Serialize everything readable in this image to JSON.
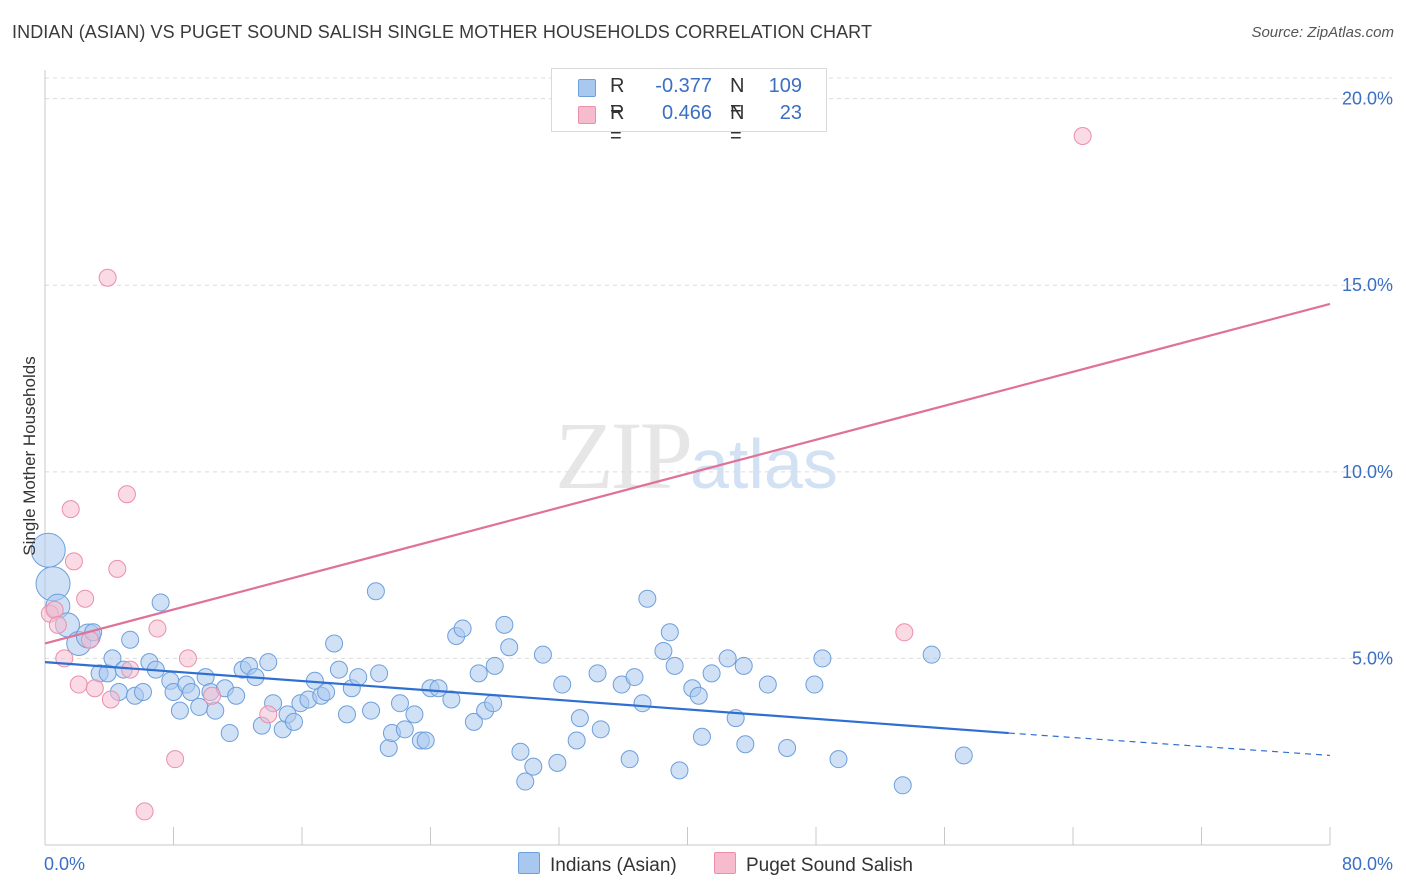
{
  "title": "INDIAN (ASIAN) VS PUGET SOUND SALISH SINGLE MOTHER HOUSEHOLDS CORRELATION CHART",
  "source": "Source: ZipAtlas.com",
  "watermark": {
    "zip": "ZIP",
    "atlas": "atlas"
  },
  "legend": {
    "rows": [
      {
        "r_label": "R =",
        "r_value": "-0.377",
        "n_label": "N =",
        "n_value": "109",
        "color": "#a9c8ef"
      },
      {
        "r_label": "R =",
        "r_value": "0.466",
        "n_label": "N =",
        "n_value": "23",
        "color": "#f6bccd"
      }
    ]
  },
  "bottom_legend": {
    "items": [
      {
        "label": "Indians (Asian)",
        "color": "#a9c8ef"
      },
      {
        "label": "Puget Sound Salish",
        "color": "#f6bccd"
      }
    ]
  },
  "chart_data": {
    "type": "scatter",
    "title": "INDIAN (ASIAN) VS PUGET SOUND SALISH SINGLE MOTHER HOUSEHOLDS CORRELATION CHART",
    "xlabel": "",
    "ylabel": "Single Mother Households",
    "xlim": [
      0,
      80
    ],
    "ylim": [
      0,
      20.5
    ],
    "x_tick_labels": [
      "0.0%",
      "80.0%"
    ],
    "y_ticks": [
      5,
      10,
      15,
      20
    ],
    "y_tick_labels": [
      "5.0%",
      "10.0%",
      "15.0%",
      "20.0%"
    ],
    "grid": true,
    "legend_position": "top-center",
    "series": [
      {
        "name": "Indians (Asian)",
        "color": "#a9c8ef",
        "edge_color": "#6d9fdc",
        "trend_color": "#2f6fd0",
        "trend": {
          "x0": 0,
          "y0": 4.9,
          "x1": 60,
          "y1": 3.0,
          "dashed_to_x": 80,
          "dashed_to_y": 2.4
        },
        "points": [
          {
            "x": 0.2,
            "y": 7.9,
            "s": 3
          },
          {
            "x": 0.5,
            "y": 7.0,
            "s": 3
          },
          {
            "x": 0.8,
            "y": 6.4,
            "s": 2
          },
          {
            "x": 1.4,
            "y": 5.9,
            "s": 2
          },
          {
            "x": 2.1,
            "y": 5.4,
            "s": 2
          },
          {
            "x": 2.7,
            "y": 5.6,
            "s": 2
          },
          {
            "x": 3.0,
            "y": 5.7,
            "s": 1
          },
          {
            "x": 3.4,
            "y": 4.6,
            "s": 1
          },
          {
            "x": 3.9,
            "y": 4.6,
            "s": 1
          },
          {
            "x": 4.2,
            "y": 5.0,
            "s": 1
          },
          {
            "x": 4.6,
            "y": 4.1,
            "s": 1
          },
          {
            "x": 4.9,
            "y": 4.7,
            "s": 1
          },
          {
            "x": 5.3,
            "y": 5.5,
            "s": 1
          },
          {
            "x": 5.6,
            "y": 4.0,
            "s": 1
          },
          {
            "x": 6.1,
            "y": 4.1,
            "s": 1
          },
          {
            "x": 6.5,
            "y": 4.9,
            "s": 1
          },
          {
            "x": 6.9,
            "y": 4.7,
            "s": 1
          },
          {
            "x": 7.2,
            "y": 6.5,
            "s": 1
          },
          {
            "x": 7.8,
            "y": 4.4,
            "s": 1
          },
          {
            "x": 8.0,
            "y": 4.1,
            "s": 1
          },
          {
            "x": 8.4,
            "y": 3.6,
            "s": 1
          },
          {
            "x": 8.8,
            "y": 4.3,
            "s": 1
          },
          {
            "x": 9.1,
            "y": 4.1,
            "s": 1
          },
          {
            "x": 9.6,
            "y": 3.7,
            "s": 1
          },
          {
            "x": 10.0,
            "y": 4.5,
            "s": 1
          },
          {
            "x": 10.3,
            "y": 4.1,
            "s": 1
          },
          {
            "x": 10.6,
            "y": 3.6,
            "s": 1
          },
          {
            "x": 11.2,
            "y": 4.2,
            "s": 1
          },
          {
            "x": 11.5,
            "y": 3.0,
            "s": 1
          },
          {
            "x": 11.9,
            "y": 4.0,
            "s": 1
          },
          {
            "x": 12.3,
            "y": 4.7,
            "s": 1
          },
          {
            "x": 12.7,
            "y": 4.8,
            "s": 1
          },
          {
            "x": 13.1,
            "y": 4.5,
            "s": 1
          },
          {
            "x": 13.5,
            "y": 3.2,
            "s": 1
          },
          {
            "x": 13.9,
            "y": 4.9,
            "s": 1
          },
          {
            "x": 14.2,
            "y": 3.8,
            "s": 1
          },
          {
            "x": 14.8,
            "y": 3.1,
            "s": 1
          },
          {
            "x": 15.1,
            "y": 3.5,
            "s": 1
          },
          {
            "x": 15.5,
            "y": 3.3,
            "s": 1
          },
          {
            "x": 15.9,
            "y": 3.8,
            "s": 1
          },
          {
            "x": 16.4,
            "y": 3.9,
            "s": 1
          },
          {
            "x": 16.8,
            "y": 4.4,
            "s": 1
          },
          {
            "x": 17.2,
            "y": 4.0,
            "s": 1
          },
          {
            "x": 17.5,
            "y": 4.1,
            "s": 1
          },
          {
            "x": 18.0,
            "y": 5.4,
            "s": 1
          },
          {
            "x": 18.3,
            "y": 4.7,
            "s": 1
          },
          {
            "x": 18.8,
            "y": 3.5,
            "s": 1
          },
          {
            "x": 19.1,
            "y": 4.2,
            "s": 1
          },
          {
            "x": 19.5,
            "y": 4.5,
            "s": 1
          },
          {
            "x": 20.3,
            "y": 3.6,
            "s": 1
          },
          {
            "x": 20.6,
            "y": 6.8,
            "s": 1
          },
          {
            "x": 20.8,
            "y": 4.6,
            "s": 1
          },
          {
            "x": 21.4,
            "y": 2.6,
            "s": 1
          },
          {
            "x": 21.6,
            "y": 3.0,
            "s": 1
          },
          {
            "x": 22.1,
            "y": 3.8,
            "s": 1
          },
          {
            "x": 22.4,
            "y": 3.1,
            "s": 1
          },
          {
            "x": 23.0,
            "y": 3.5,
            "s": 1
          },
          {
            "x": 23.4,
            "y": 2.8,
            "s": 1
          },
          {
            "x": 23.7,
            "y": 2.8,
            "s": 1
          },
          {
            "x": 24.0,
            "y": 4.2,
            "s": 1
          },
          {
            "x": 24.5,
            "y": 4.2,
            "s": 1
          },
          {
            "x": 25.3,
            "y": 3.9,
            "s": 1
          },
          {
            "x": 25.6,
            "y": 5.6,
            "s": 1
          },
          {
            "x": 26.0,
            "y": 5.8,
            "s": 1
          },
          {
            "x": 26.7,
            "y": 3.3,
            "s": 1
          },
          {
            "x": 27.0,
            "y": 4.6,
            "s": 1
          },
          {
            "x": 27.4,
            "y": 3.6,
            "s": 1
          },
          {
            "x": 27.9,
            "y": 3.8,
            "s": 1
          },
          {
            "x": 28.0,
            "y": 4.8,
            "s": 1
          },
          {
            "x": 28.6,
            "y": 5.9,
            "s": 1
          },
          {
            "x": 28.9,
            "y": 5.3,
            "s": 1
          },
          {
            "x": 29.6,
            "y": 2.5,
            "s": 1
          },
          {
            "x": 29.9,
            "y": 1.7,
            "s": 1
          },
          {
            "x": 30.4,
            "y": 2.1,
            "s": 1
          },
          {
            "x": 31.0,
            "y": 5.1,
            "s": 1
          },
          {
            "x": 31.9,
            "y": 2.2,
            "s": 1
          },
          {
            "x": 32.2,
            "y": 4.3,
            "s": 1
          },
          {
            "x": 33.1,
            "y": 2.8,
            "s": 1
          },
          {
            "x": 33.3,
            "y": 3.4,
            "s": 1
          },
          {
            "x": 34.4,
            "y": 4.6,
            "s": 1
          },
          {
            "x": 34.6,
            "y": 3.1,
            "s": 1
          },
          {
            "x": 35.9,
            "y": 4.3,
            "s": 1
          },
          {
            "x": 36.7,
            "y": 4.5,
            "s": 1
          },
          {
            "x": 37.2,
            "y": 3.8,
            "s": 1
          },
          {
            "x": 37.5,
            "y": 6.6,
            "s": 1
          },
          {
            "x": 38.5,
            "y": 5.2,
            "s": 1
          },
          {
            "x": 38.9,
            "y": 5.7,
            "s": 1
          },
          {
            "x": 39.2,
            "y": 4.8,
            "s": 1
          },
          {
            "x": 39.5,
            "y": 2.0,
            "s": 1
          },
          {
            "x": 40.3,
            "y": 4.2,
            "s": 1
          },
          {
            "x": 40.7,
            "y": 4.0,
            "s": 1
          },
          {
            "x": 40.9,
            "y": 2.9,
            "s": 1
          },
          {
            "x": 41.5,
            "y": 4.6,
            "s": 1
          },
          {
            "x": 42.5,
            "y": 5.0,
            "s": 1
          },
          {
            "x": 43.0,
            "y": 3.4,
            "s": 1
          },
          {
            "x": 43.5,
            "y": 4.8,
            "s": 1
          },
          {
            "x": 43.6,
            "y": 2.7,
            "s": 1
          },
          {
            "x": 45.0,
            "y": 4.3,
            "s": 1
          },
          {
            "x": 46.2,
            "y": 2.6,
            "s": 1
          },
          {
            "x": 47.9,
            "y": 4.3,
            "s": 1
          },
          {
            "x": 48.4,
            "y": 5.0,
            "s": 1
          },
          {
            "x": 49.4,
            "y": 2.3,
            "s": 1
          },
          {
            "x": 53.4,
            "y": 1.6,
            "s": 1
          },
          {
            "x": 55.2,
            "y": 5.1,
            "s": 1
          },
          {
            "x": 57.2,
            "y": 2.4,
            "s": 1
          },
          {
            "x": 36.4,
            "y": 2.3,
            "s": 1
          }
        ]
      },
      {
        "name": "Puget Sound Salish",
        "color": "#f6bccd",
        "edge_color": "#eb8faa",
        "trend_color": "#e07298",
        "trend": {
          "x0": 0,
          "y0": 5.4,
          "x1": 80,
          "y1": 14.5
        },
        "points": [
          {
            "x": 0.3,
            "y": 6.2
          },
          {
            "x": 0.6,
            "y": 6.3
          },
          {
            "x": 0.8,
            "y": 5.9
          },
          {
            "x": 1.2,
            "y": 5.0
          },
          {
            "x": 1.6,
            "y": 9.0
          },
          {
            "x": 1.8,
            "y": 7.6
          },
          {
            "x": 2.1,
            "y": 4.3
          },
          {
            "x": 2.5,
            "y": 6.6
          },
          {
            "x": 2.8,
            "y": 5.5
          },
          {
            "x": 3.1,
            "y": 4.2
          },
          {
            "x": 3.9,
            "y": 15.2
          },
          {
            "x": 4.1,
            "y": 3.9
          },
          {
            "x": 4.5,
            "y": 7.4
          },
          {
            "x": 5.1,
            "y": 9.4
          },
          {
            "x": 5.3,
            "y": 4.7
          },
          {
            "x": 6.2,
            "y": 0.9
          },
          {
            "x": 7.0,
            "y": 5.8
          },
          {
            "x": 8.1,
            "y": 2.3
          },
          {
            "x": 8.9,
            "y": 5.0
          },
          {
            "x": 10.4,
            "y": 4.0
          },
          {
            "x": 13.9,
            "y": 3.5
          },
          {
            "x": 53.5,
            "y": 5.7
          },
          {
            "x": 64.6,
            "y": 19.0
          }
        ]
      }
    ]
  }
}
